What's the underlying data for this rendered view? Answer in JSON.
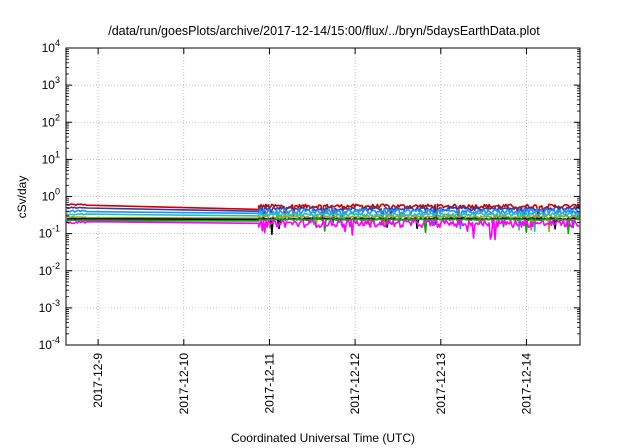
{
  "chart_data": {
    "type": "line",
    "title": "/data/run/goesPlots/archive/2017-12-14/15:00/flux/../bryn/5daysEarthData.plot",
    "xlabel": "Coordinated Universal Time (UTC)",
    "ylabel": "cSv/day",
    "yscale": "log",
    "ylim": [
      0.0001,
      10000
    ],
    "xlim": [
      "2017-12-08T15:00",
      "2017-12-14T15:00"
    ],
    "grid": true,
    "legend": "none",
    "y_ticks": [
      {
        "base": "10",
        "exp": "-4",
        "value": 0.0001
      },
      {
        "base": "10",
        "exp": "-3",
        "value": 0.001
      },
      {
        "base": "10",
        "exp": "-2",
        "value": 0.01
      },
      {
        "base": "10",
        "exp": "-1",
        "value": 0.1
      },
      {
        "base": "10",
        "exp": "0",
        "value": 1
      },
      {
        "base": "10",
        "exp": "1",
        "value": 10
      },
      {
        "base": "10",
        "exp": "2",
        "value": 100
      },
      {
        "base": "10",
        "exp": "3",
        "value": 1000
      },
      {
        "base": "10",
        "exp": "4",
        "value": 10000
      }
    ],
    "x_ticks": [
      "2017-12-9",
      "2017-12-10",
      "2017-12-11",
      "2017-12-12",
      "2017-12-13",
      "2017-12-14"
    ],
    "x_tick_dates": [
      "2017-12-09",
      "2017-12-10",
      "2017-12-11",
      "2017-12-12",
      "2017-12-13",
      "2017-12-14"
    ],
    "data_gap": [
      "2017-12-08T21:00",
      "2017-12-10T21:00"
    ],
    "series": [
      {
        "color": "#cc0000",
        "start": 0.6,
        "end": 0.45,
        "level": 0.55,
        "noise": 0.25
      },
      {
        "color": "#3a3aa0",
        "start": 0.5,
        "end": 0.4,
        "level": 0.47,
        "noise": 0.25
      },
      {
        "color": "#2090ff",
        "start": 0.4,
        "end": 0.35,
        "level": 0.4,
        "noise": 0.3
      },
      {
        "color": "#20c0c0",
        "start": 0.33,
        "end": 0.3,
        "level": 0.33,
        "noise": 0.2
      },
      {
        "color": "#a0a020",
        "start": 0.28,
        "end": 0.26,
        "level": 0.28,
        "noise": 0.15
      },
      {
        "color": "#000000",
        "start": 0.25,
        "end": 0.24,
        "level": 0.25,
        "noise": 0.1
      },
      {
        "color": "#00aa00",
        "start": 0.23,
        "end": 0.22,
        "level": 0.24,
        "noise": 0.1
      },
      {
        "color": "#ff00ff",
        "start": 0.2,
        "end": 0.19,
        "level": 0.19,
        "noise": 0.45
      }
    ]
  }
}
